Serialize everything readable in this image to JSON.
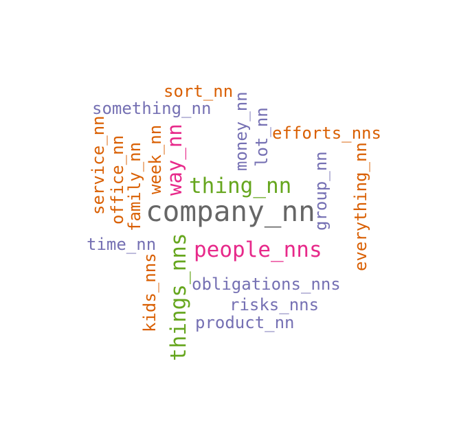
{
  "colors": {
    "gray": "#666666",
    "green": "#66a61e",
    "magenta": "#e7298a",
    "purple": "#7570b3",
    "orange": "#d95f02"
  },
  "words": [
    {
      "text": "company_nn",
      "color": "gray",
      "weight": 10,
      "orientation": "horizontal"
    },
    {
      "text": "thing_nn",
      "color": "green",
      "weight": 6,
      "orientation": "horizontal"
    },
    {
      "text": "people_nns",
      "color": "magenta",
      "weight": 6,
      "orientation": "horizontal"
    },
    {
      "text": "things_nns",
      "color": "green",
      "weight": 6,
      "orientation": "vertical"
    },
    {
      "text": "way_nn",
      "color": "magenta",
      "weight": 5,
      "orientation": "vertical"
    },
    {
      "text": "obligations_nns",
      "color": "purple",
      "weight": 4,
      "orientation": "horizontal"
    },
    {
      "text": "risks_nns",
      "color": "purple",
      "weight": 4,
      "orientation": "horizontal"
    },
    {
      "text": "product_nn",
      "color": "purple",
      "weight": 4,
      "orientation": "horizontal"
    },
    {
      "text": "time_nn",
      "color": "purple",
      "weight": 4,
      "orientation": "horizontal"
    },
    {
      "text": "something_nn",
      "color": "purple",
      "weight": 4,
      "orientation": "horizontal"
    },
    {
      "text": "sort_nn",
      "color": "orange",
      "weight": 4,
      "orientation": "horizontal"
    },
    {
      "text": "efforts_nns",
      "color": "orange",
      "weight": 4,
      "orientation": "horizontal"
    },
    {
      "text": "money_nn",
      "color": "purple",
      "weight": 4,
      "orientation": "vertical"
    },
    {
      "text": "lot_nn",
      "color": "purple",
      "weight": 4,
      "orientation": "vertical"
    },
    {
      "text": "group_nn",
      "color": "purple",
      "weight": 4,
      "orientation": "vertical"
    },
    {
      "text": "everything_nn",
      "color": "orange",
      "weight": 4,
      "orientation": "vertical"
    },
    {
      "text": "kids_nns",
      "color": "orange",
      "weight": 4,
      "orientation": "vertical"
    },
    {
      "text": "service_nn",
      "color": "orange",
      "weight": 4,
      "orientation": "vertical"
    },
    {
      "text": "office_nn",
      "color": "orange",
      "weight": 4,
      "orientation": "vertical"
    },
    {
      "text": "family_nn",
      "color": "orange",
      "weight": 4,
      "orientation": "vertical"
    },
    {
      "text": "week_nn",
      "color": "orange",
      "weight": 4,
      "orientation": "vertical"
    }
  ]
}
